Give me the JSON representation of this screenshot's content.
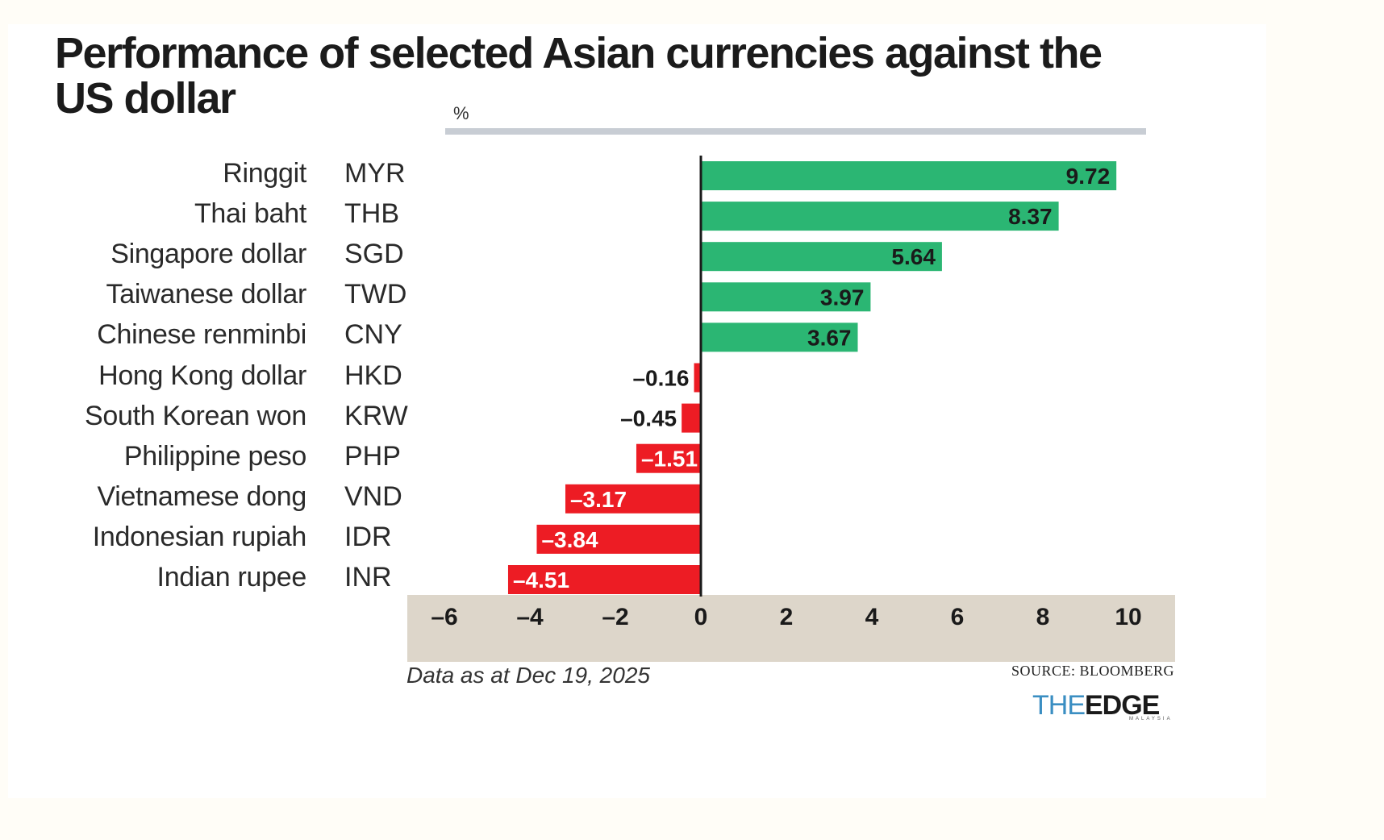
{
  "header": {
    "title": "Performance of selected Asian currencies against the US dollar",
    "unit_label": "%"
  },
  "chart_data": {
    "type": "bar",
    "orientation": "horizontal",
    "title": "Performance of selected Asian currencies against the US dollar",
    "xlabel": "%",
    "ylabel": "",
    "xlim": [
      -6,
      10
    ],
    "x_ticks": [
      -6,
      -4,
      -2,
      0,
      2,
      4,
      6,
      8,
      10
    ],
    "x_tick_labels": [
      "–6",
      "–4",
      "–2",
      "0",
      "2",
      "4",
      "6",
      "8",
      "10"
    ],
    "grid": false,
    "legend": "none",
    "categories": [
      "Ringgit",
      "Thai baht",
      "Singapore dollar",
      "Taiwanese dollar",
      "Chinese renminbi",
      "Hong Kong dollar",
      "South Korean won",
      "Philippine peso",
      "Vietnamese dong",
      "Indonesian rupiah",
      "Indian rupee"
    ],
    "codes": [
      "MYR",
      "THB",
      "SGD",
      "TWD",
      "CNY",
      "HKD",
      "KRW",
      "PHP",
      "VND",
      "IDR",
      "INR"
    ],
    "values": [
      9.72,
      8.37,
      5.64,
      3.97,
      3.67,
      -0.16,
      -0.45,
      -1.51,
      -3.17,
      -3.84,
      -4.51
    ],
    "value_labels": [
      "9.72",
      "8.37",
      "5.64",
      "3.97",
      "3.67",
      "–0.16",
      "–0.45",
      "–1.51",
      "–3.17",
      "–3.84",
      "–4.51"
    ],
    "colors": {
      "positive": "#2bb673",
      "negative": "#ed1c24",
      "axis": "#1a1a1a",
      "axis_band": "#ddd6ca"
    }
  },
  "footer": {
    "note": "Data as at Dec 19, 2025",
    "source": "SOURCE: BLOOMBERG",
    "logo_the": "THE",
    "logo_edge": "EDGE",
    "logo_sub": "MALAYSIA"
  }
}
